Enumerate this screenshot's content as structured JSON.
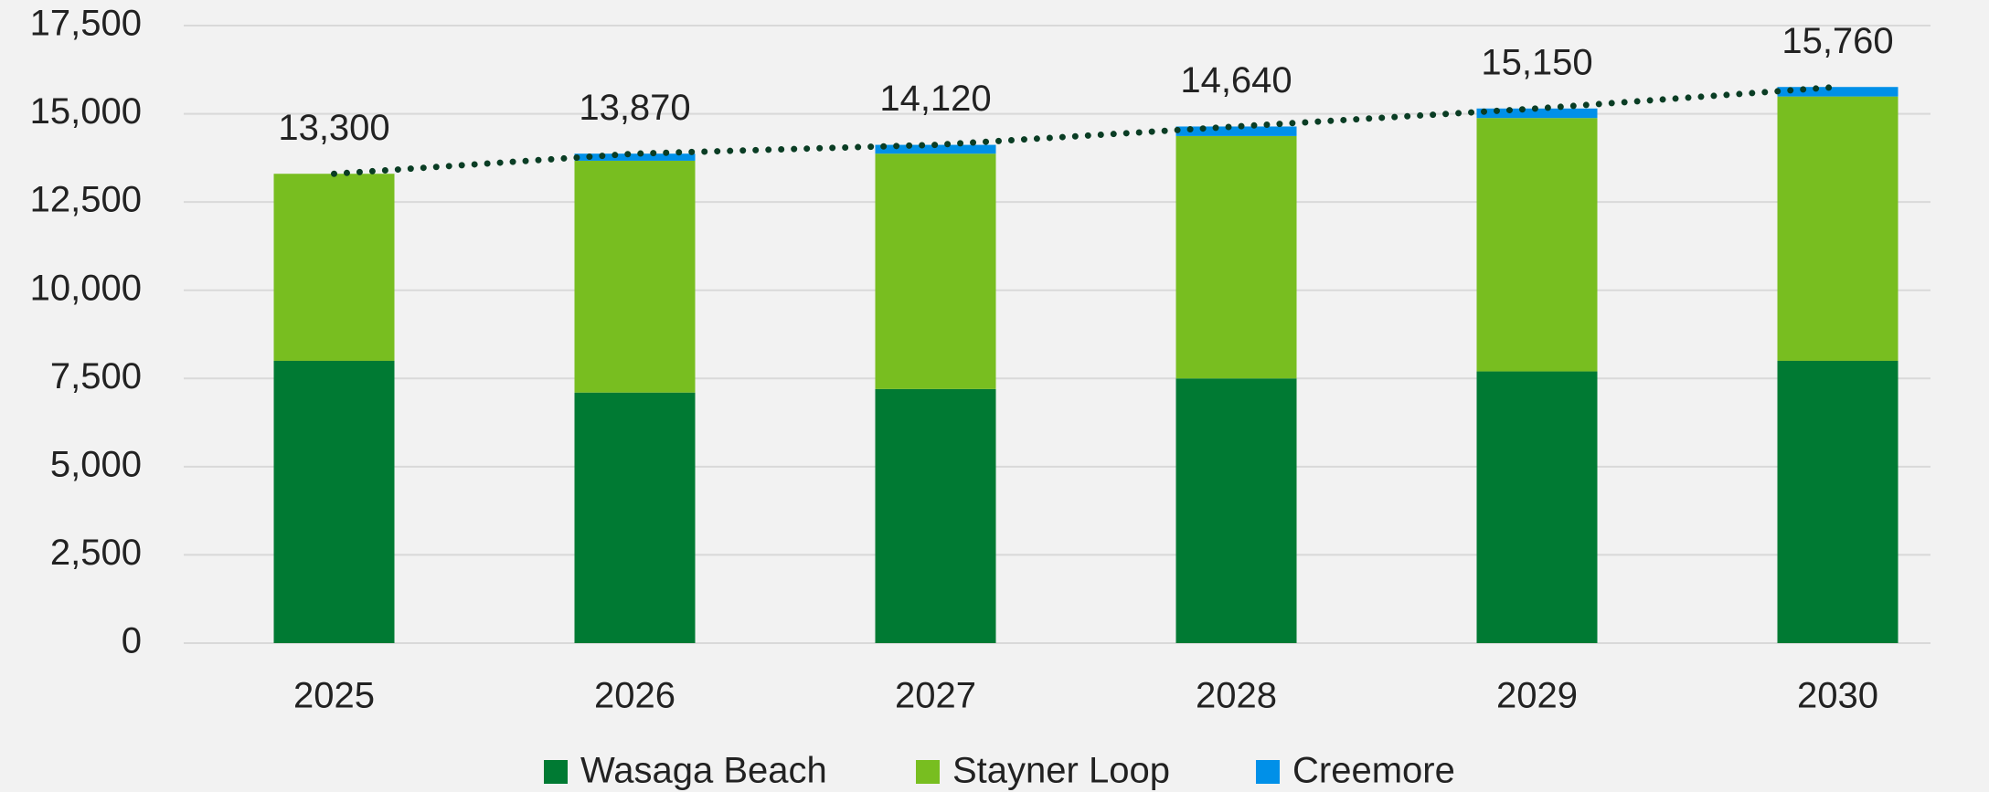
{
  "chart_data": {
    "type": "bar",
    "stacked": true,
    "categories": [
      "2025",
      "2026",
      "2027",
      "2028",
      "2029",
      "2030"
    ],
    "series": [
      {
        "name": "Wasaga Beach",
        "color": "#007a33",
        "values": [
          8000,
          7100,
          7200,
          7500,
          7700,
          8000
        ]
      },
      {
        "name": "Stayner Loop",
        "color": "#78be20",
        "values": [
          5300,
          6570,
          6670,
          6870,
          7180,
          7490
        ]
      },
      {
        "name": "Creemore",
        "color": "#0090e8",
        "values": [
          0,
          200,
          250,
          270,
          270,
          270
        ]
      }
    ],
    "totals": {
      "color": "#0a3d24",
      "line_style": "dotted",
      "values": [
        13300,
        13870,
        14120,
        14640,
        15150,
        15760
      ],
      "value_labels": [
        "13,300",
        "13,870",
        "14,120",
        "14,640",
        "15,150",
        "15,760"
      ]
    },
    "ylim": [
      0,
      17500
    ],
    "yticks": [
      0,
      {
        "value": 2500,
        "label": "2,500"
      },
      {
        "value": 5000,
        "label": "5,000"
      },
      {
        "value": 7500,
        "label": "7,500"
      },
      {
        "value": 10000,
        "label": "10,000"
      },
      {
        "value": 12500,
        "label": "12,500"
      },
      {
        "value": 15000,
        "label": "15,000"
      },
      {
        "value": 17500,
        "label": "17,500"
      }
    ],
    "grid": true,
    "legend": "bottom"
  }
}
